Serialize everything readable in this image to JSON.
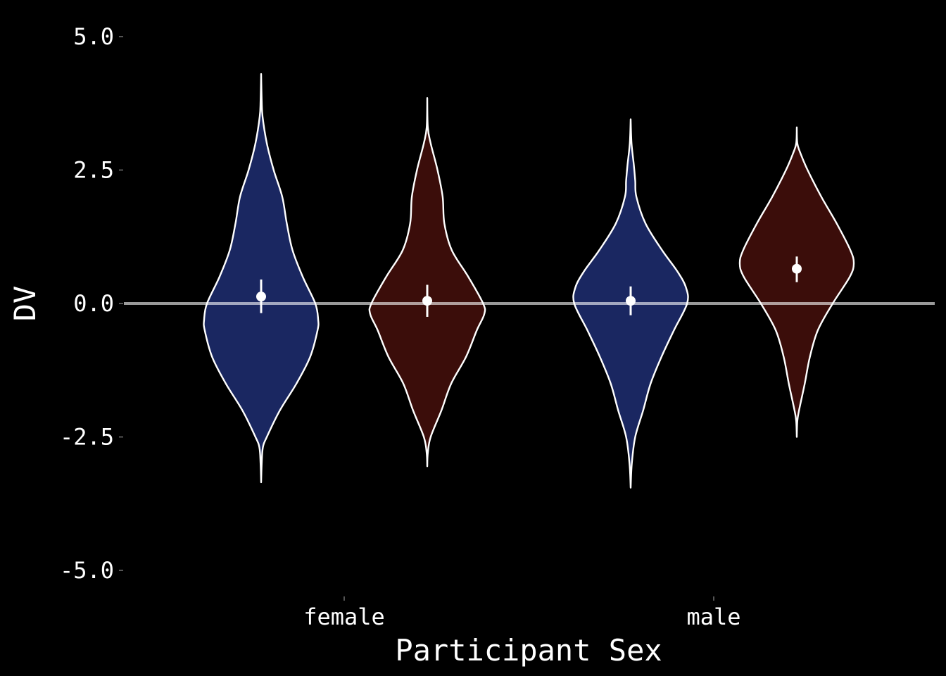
{
  "chart_data": {
    "type": "violin",
    "xlabel": "Participant Sex",
    "ylabel": "DV",
    "ylim": [
      -5.5,
      5.5
    ],
    "y_ticks": [
      5.0,
      2.5,
      0.0,
      -2.5,
      -5.0
    ],
    "y_tick_labels": [
      "5.0",
      "2.5",
      "0.0",
      "-2.5",
      "-5.0"
    ],
    "categories": [
      "female",
      "male"
    ],
    "reference_line": 0.0,
    "grid": false,
    "legend": "none",
    "colors": {
      "background": "#000000",
      "blue_fill": "#1a2761",
      "red_fill": "#3b0d0a",
      "outline": "#ffffff",
      "reference_line": "#ffffff",
      "summary_point": "#ffffff"
    },
    "groups": [
      {
        "category": "female",
        "fill": "blue",
        "y_min": -3.35,
        "y_max": 4.3,
        "mean": 0.13,
        "ci": [
          -0.18,
          0.45
        ],
        "density": [
          [
            -3.35,
            0.0
          ],
          [
            -3.0,
            0.01
          ],
          [
            -2.7,
            0.03
          ],
          [
            -2.5,
            0.1
          ],
          [
            -2.0,
            0.33
          ],
          [
            -1.5,
            0.62
          ],
          [
            -1.0,
            0.86
          ],
          [
            -0.5,
            0.99
          ],
          [
            -0.3,
            1.0
          ],
          [
            0.0,
            0.95
          ],
          [
            0.5,
            0.73
          ],
          [
            1.0,
            0.55
          ],
          [
            1.5,
            0.45
          ],
          [
            2.0,
            0.37
          ],
          [
            2.5,
            0.22
          ],
          [
            3.0,
            0.1
          ],
          [
            3.5,
            0.025
          ],
          [
            3.8,
            0.01
          ],
          [
            4.3,
            0.0
          ]
        ]
      },
      {
        "category": "female",
        "fill": "red",
        "y_min": -3.05,
        "y_max": 3.85,
        "mean": 0.05,
        "ci": [
          -0.25,
          0.35
        ],
        "density": [
          [
            -3.05,
            0.0
          ],
          [
            -2.8,
            0.01
          ],
          [
            -2.5,
            0.06
          ],
          [
            -2.0,
            0.25
          ],
          [
            -1.5,
            0.42
          ],
          [
            -1.0,
            0.68
          ],
          [
            -0.5,
            0.87
          ],
          [
            -0.2,
            1.0
          ],
          [
            0.0,
            0.98
          ],
          [
            0.5,
            0.72
          ],
          [
            1.0,
            0.43
          ],
          [
            1.5,
            0.3
          ],
          [
            2.0,
            0.27
          ],
          [
            2.5,
            0.18
          ],
          [
            3.0,
            0.06
          ],
          [
            3.3,
            0.01
          ],
          [
            3.85,
            0.0
          ]
        ]
      },
      {
        "category": "male",
        "fill": "blue",
        "y_min": -3.45,
        "y_max": 3.45,
        "mean": 0.05,
        "ci": [
          -0.22,
          0.32
        ],
        "density": [
          [
            -3.45,
            0.0
          ],
          [
            -3.0,
            0.02
          ],
          [
            -2.5,
            0.08
          ],
          [
            -2.0,
            0.22
          ],
          [
            -1.5,
            0.35
          ],
          [
            -1.0,
            0.54
          ],
          [
            -0.5,
            0.76
          ],
          [
            0.0,
            0.99
          ],
          [
            0.3,
            0.97
          ],
          [
            0.6,
            0.82
          ],
          [
            1.0,
            0.55
          ],
          [
            1.5,
            0.26
          ],
          [
            2.0,
            0.1
          ],
          [
            2.3,
            0.08
          ],
          [
            2.6,
            0.055
          ],
          [
            3.0,
            0.015
          ],
          [
            3.45,
            0.0
          ]
        ]
      },
      {
        "category": "male",
        "fill": "red",
        "y_min": -2.5,
        "y_max": 3.3,
        "mean": 0.65,
        "ci": [
          0.4,
          0.88
        ],
        "density": [
          [
            -2.5,
            0.0
          ],
          [
            -2.2,
            0.01
          ],
          [
            -2.0,
            0.04
          ],
          [
            -1.5,
            0.14
          ],
          [
            -1.0,
            0.23
          ],
          [
            -0.5,
            0.37
          ],
          [
            0.0,
            0.63
          ],
          [
            0.5,
            0.93
          ],
          [
            0.75,
            1.0
          ],
          [
            1.0,
            0.94
          ],
          [
            1.5,
            0.7
          ],
          [
            2.0,
            0.43
          ],
          [
            2.5,
            0.19
          ],
          [
            2.8,
            0.07
          ],
          [
            3.0,
            0.01
          ],
          [
            3.3,
            0.0
          ]
        ]
      }
    ]
  }
}
